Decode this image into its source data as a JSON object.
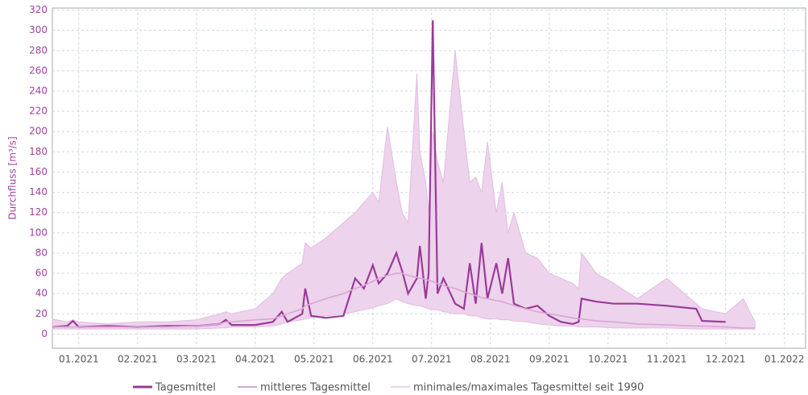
{
  "chart_data": {
    "type": "line",
    "y_label": "Durchfluss [m³/s]",
    "x": [
      0.05,
      0.3,
      0.4,
      0.5,
      1,
      1.5,
      2,
      2.5,
      2.9,
      3.0,
      3.1,
      3.5,
      3.8,
      3.95,
      4.05,
      4.3,
      4.35,
      4.45,
      4.7,
      5.0,
      5.2,
      5.35,
      5.5,
      5.6,
      5.75,
      5.9,
      6.0,
      6.1,
      6.25,
      6.3,
      6.4,
      6.45,
      6.52,
      6.6,
      6.7,
      6.9,
      7.05,
      7.15,
      7.25,
      7.35,
      7.45,
      7.6,
      7.7,
      7.8,
      7.9,
      8.1,
      8.3,
      8.5,
      8.7,
      8.9,
      9.0,
      9.05,
      9.3,
      9.6,
      10,
      10.5,
      11,
      11.1,
      11.5,
      11.8,
      12.0
    ],
    "series": [
      {
        "name": "Tagesmittel",
        "color": "#9b3a9b",
        "values": [
          7,
          8,
          13,
          7,
          8,
          7,
          8,
          8,
          10,
          14,
          9,
          9,
          12,
          22,
          12,
          20,
          45,
          18,
          16,
          18,
          55,
          45,
          68,
          50,
          60,
          80,
          62,
          40,
          55,
          87,
          35,
          60,
          310,
          40,
          55,
          30,
          25,
          70,
          30,
          90,
          35,
          70,
          40,
          75,
          30,
          25,
          28,
          18,
          12,
          10,
          12,
          35,
          32,
          30,
          30,
          28,
          25,
          13,
          12,
          null,
          null
        ]
      },
      {
        "name": "mittleres Tagesmittel",
        "color": "#d9a7d6",
        "values": [
          7,
          7,
          7,
          7,
          7,
          7,
          7,
          8,
          10,
          12,
          12,
          14,
          15,
          18,
          20,
          25,
          28,
          30,
          35,
          40,
          45,
          48,
          52,
          55,
          58,
          60,
          60,
          58,
          56,
          55,
          54,
          53,
          52,
          50,
          48,
          45,
          42,
          40,
          38,
          36,
          35,
          33,
          32,
          30,
          28,
          25,
          22,
          20,
          18,
          16,
          15,
          15,
          13,
          12,
          10,
          9,
          8,
          8,
          7,
          6,
          6
        ]
      },
      {
        "name": "minimales/maximales Tagesmittel seit 1990",
        "color": "#edd3eb",
        "kind": "band",
        "high": [
          15,
          12,
          14,
          12,
          10,
          12,
          12,
          14,
          20,
          22,
          20,
          25,
          40,
          55,
          60,
          70,
          90,
          85,
          95,
          110,
          120,
          130,
          140,
          130,
          205,
          150,
          120,
          110,
          257,
          180,
          150,
          120,
          200,
          170,
          150,
          280,
          200,
          150,
          155,
          140,
          190,
          120,
          150,
          100,
          120,
          80,
          75,
          60,
          55,
          50,
          45,
          80,
          60,
          50,
          35,
          55,
          30,
          25,
          20,
          35,
          12
        ],
        "low": [
          5,
          5,
          5,
          5,
          5,
          5,
          5,
          5,
          6,
          6,
          7,
          7,
          8,
          10,
          12,
          14,
          15,
          16,
          18,
          20,
          22,
          24,
          26,
          28,
          30,
          35,
          32,
          30,
          28,
          28,
          26,
          25,
          24,
          24,
          22,
          20,
          20,
          18,
          18,
          16,
          15,
          15,
          14,
          14,
          13,
          12,
          10,
          9,
          8,
          8,
          7,
          7,
          7,
          6,
          6,
          6,
          5,
          5,
          5,
          5,
          5
        ]
      }
    ],
    "xlim": [
      0.05,
      12.86
    ],
    "xticks": [
      {
        "value": 0.5,
        "label": "01.2021"
      },
      {
        "value": 1.5,
        "label": "02.2021"
      },
      {
        "value": 2.5,
        "label": "03.2021"
      },
      {
        "value": 3.5,
        "label": "04.2021"
      },
      {
        "value": 4.5,
        "label": "05.2021"
      },
      {
        "value": 5.5,
        "label": "06.2021"
      },
      {
        "value": 6.5,
        "label": "07.2021"
      },
      {
        "value": 7.5,
        "label": "08.2021"
      },
      {
        "value": 8.5,
        "label": "09.2021"
      },
      {
        "value": 9.5,
        "label": "10.2021"
      },
      {
        "value": 10.5,
        "label": "11.2021"
      },
      {
        "value": 11.5,
        "label": "12.2021"
      },
      {
        "value": 12.5,
        "label": "01.2022"
      }
    ],
    "ylim": [
      -14,
      322
    ],
    "yticks": [
      0,
      20,
      40,
      60,
      80,
      100,
      120,
      140,
      160,
      180,
      200,
      220,
      240,
      260,
      280,
      300,
      320
    ],
    "grid": true
  }
}
